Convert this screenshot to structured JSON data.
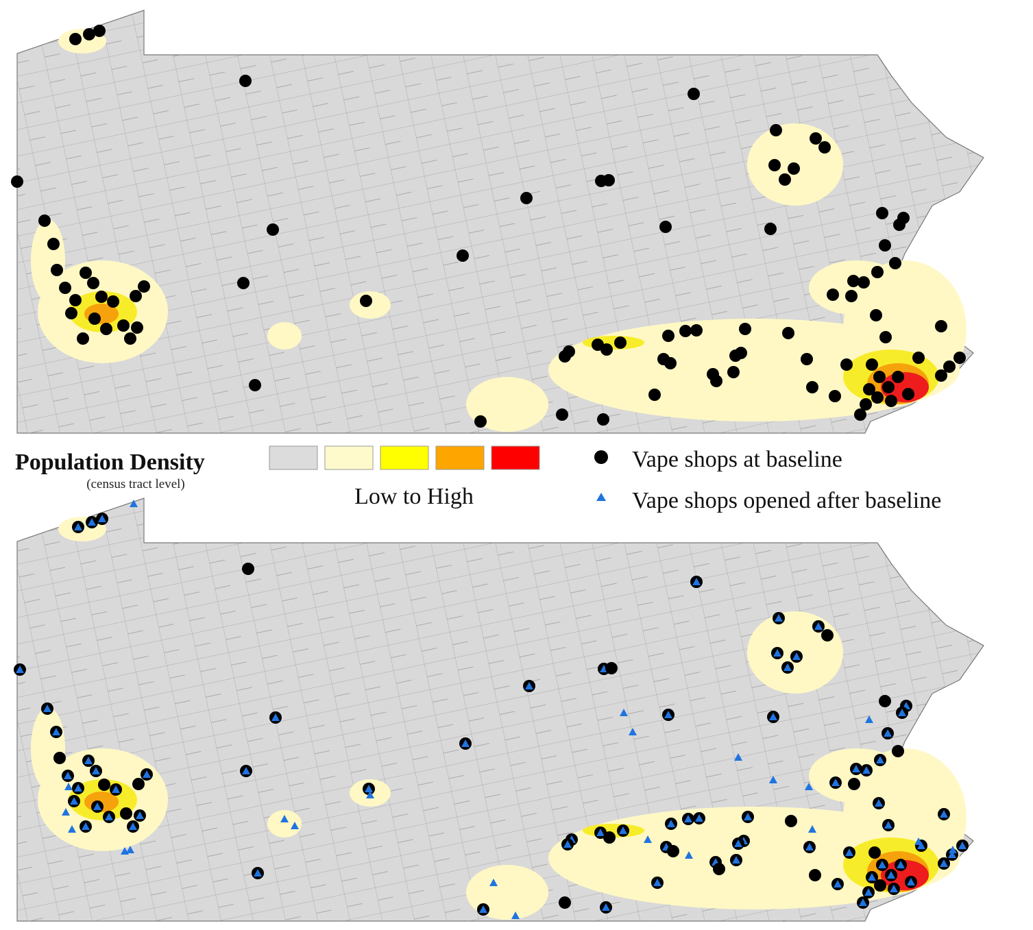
{
  "legend": {
    "title": "Population Density",
    "subtitle": "(census tract level)",
    "scale_label": "Low to High",
    "density_colors": [
      "#dcdcdc",
      "#fffacc",
      "#ffff00",
      "#ffa500",
      "#ff0000"
    ],
    "markers": [
      {
        "label": "Vape shops at baseline",
        "color": "#000000"
      },
      {
        "label": "Vape shops opened after baseline",
        "color": "#1f74e0"
      }
    ]
  }
}
